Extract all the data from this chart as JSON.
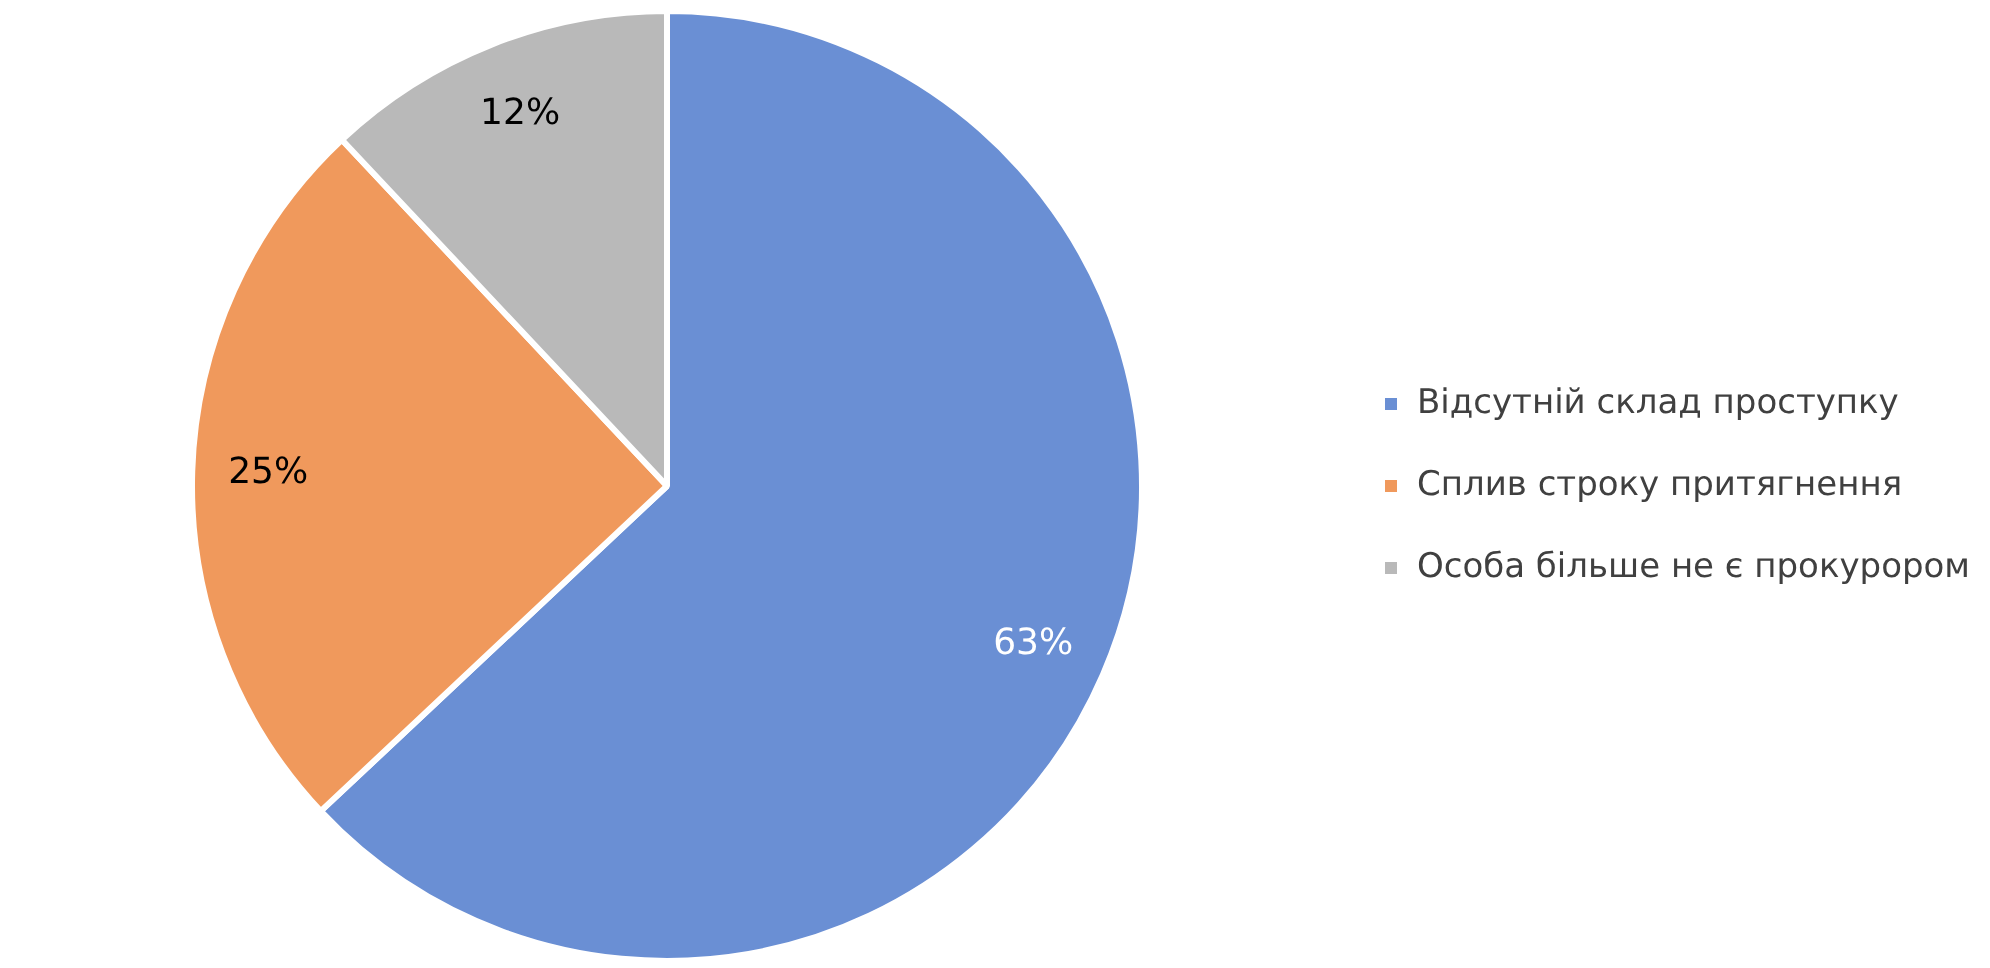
{
  "chart_data": {
    "type": "pie",
    "categories": [
      "Відсутній склад проступку",
      "Сплив строку притягнення",
      "Особа більше не є прокурором"
    ],
    "values": [
      63,
      25,
      12
    ],
    "value_labels": [
      "63%",
      "25%",
      "12%"
    ],
    "colors": [
      "#6a8fd4",
      "#f0995c",
      "#b9b9b9"
    ],
    "legend": "right"
  }
}
